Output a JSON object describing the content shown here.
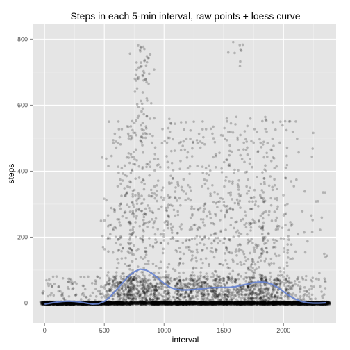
{
  "chart_data": {
    "type": "scatter",
    "title": "Steps in each 5-min interval, raw points + loess curve",
    "xlabel": "interval",
    "ylabel": "steps",
    "xlim": [
      -100,
      2440
    ],
    "ylim": [
      -60,
      845
    ],
    "x_ticks": [
      0,
      500,
      1000,
      1500,
      2000
    ],
    "y_ticks": [
      0,
      200,
      400,
      600,
      800
    ],
    "x_tick_labels": [
      "0",
      "500",
      "1000",
      "1500",
      "2000"
    ],
    "y_tick_labels": [
      "0",
      "200",
      "400",
      "600",
      "800"
    ],
    "grid": true,
    "colors": {
      "panel": "#e5e5e5",
      "grid_major": "#ffffff",
      "grid_minor": "#f2f2f2",
      "points": "#000000",
      "curve": "#6683d1",
      "tick_mark": "#7f7f7f"
    },
    "loess_curve": {
      "x": [
        0,
        50,
        100,
        150,
        200,
        250,
        300,
        350,
        400,
        450,
        500,
        550,
        600,
        650,
        700,
        750,
        800,
        850,
        900,
        950,
        1000,
        1050,
        1100,
        1150,
        1200,
        1250,
        1300,
        1350,
        1400,
        1450,
        1500,
        1550,
        1600,
        1650,
        1700,
        1750,
        1800,
        1850,
        1900,
        1950,
        2000,
        2050,
        2100,
        2150,
        2200,
        2250,
        2300,
        2355
      ],
      "y": [
        -3,
        0,
        3,
        5,
        6,
        5,
        3,
        0,
        -3,
        -2,
        5,
        20,
        40,
        60,
        80,
        95,
        103,
        100,
        90,
        75,
        60,
        48,
        42,
        40,
        40,
        41,
        43,
        45,
        47,
        47,
        48,
        48,
        50,
        54,
        58,
        62,
        64,
        63,
        58,
        48,
        35,
        22,
        12,
        5,
        1,
        0,
        0,
        1
      ]
    },
    "points_summary": "dense raw step counts per 5-minute interval (0-2355), most near 0, spread up to ~806"
  }
}
